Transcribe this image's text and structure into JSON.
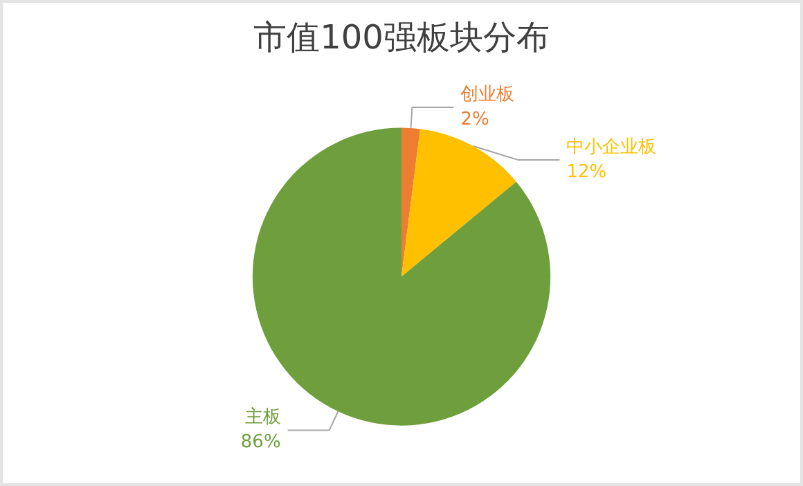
{
  "chart_data": {
    "type": "pie",
    "title": "市值100强板块分布",
    "categories": [
      "创业板",
      "中小企业板",
      "主板"
    ],
    "values": [
      2,
      12,
      86
    ],
    "colors": [
      "#ed7d31",
      "#ffc000",
      "#6e9f3c"
    ],
    "value_labels": [
      "2%",
      "12%",
      "86%"
    ],
    "legend": false
  }
}
